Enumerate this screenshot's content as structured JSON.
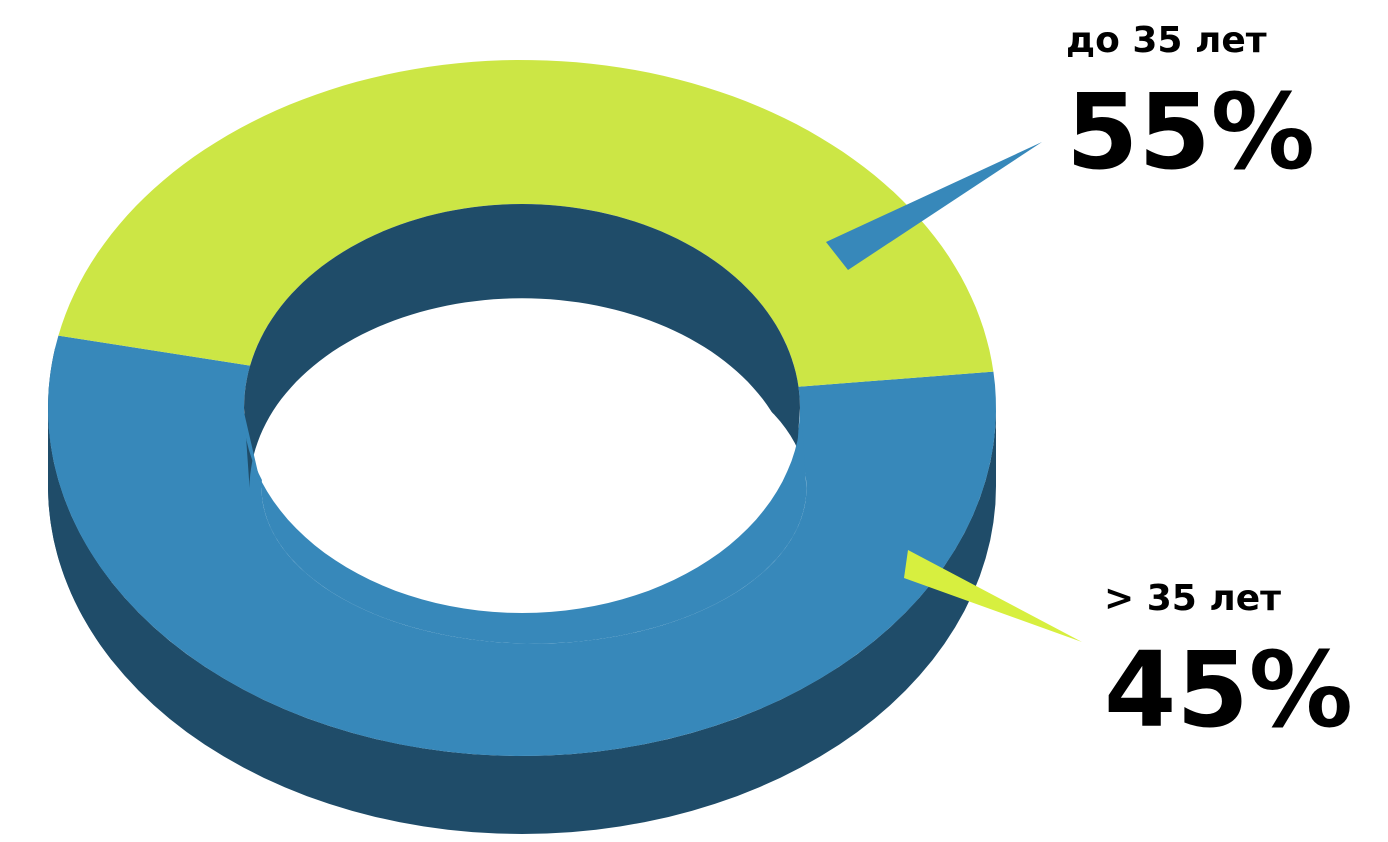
{
  "chart_data": {
    "type": "pie",
    "variant": "3d-donut",
    "title": "",
    "legend": "none",
    "series": [
      {
        "values": [
          55,
          45
        ],
        "categories": [
          "до 35 лет",
          "> 35 лет"
        ]
      }
    ],
    "slices": [
      {
        "label": "до 35 лет",
        "value_label": "55%",
        "value": 55,
        "color": "#3788ba",
        "side_color": "#1f4c69"
      },
      {
        "label": "> 35 лет",
        "value_label": "45%",
        "value": 45,
        "color": "#cce645",
        "side_color": "#738326"
      }
    ]
  }
}
